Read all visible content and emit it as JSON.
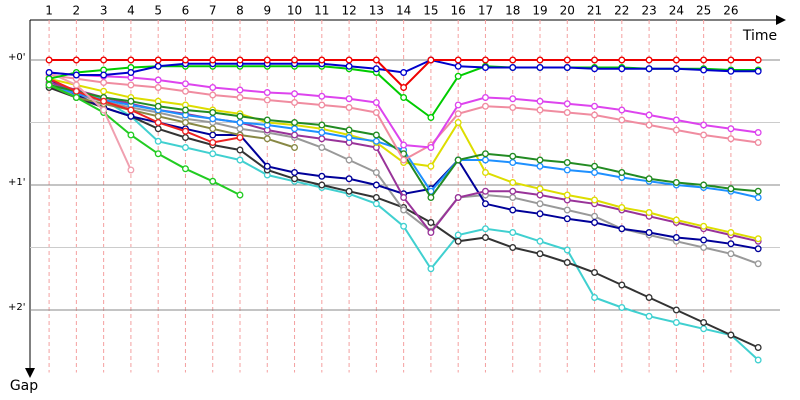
{
  "chart_data": {
    "type": "line",
    "x_label": "Time",
    "y_label": "Gap",
    "x": [
      1,
      2,
      3,
      4,
      5,
      6,
      7,
      8,
      9,
      10,
      11,
      12,
      13,
      14,
      15,
      16,
      17,
      18,
      19,
      20,
      21,
      22,
      23,
      24,
      25,
      26,
      27
    ],
    "xlim": [
      0.3,
      27.8
    ],
    "xticks": [
      1,
      2,
      3,
      4,
      5,
      6,
      7,
      8,
      9,
      10,
      11,
      12,
      13,
      14,
      15,
      16,
      17,
      18,
      19,
      20,
      21,
      22,
      23,
      24,
      25,
      26
    ],
    "ylim": [
      -0.3,
      2.5
    ],
    "yticks": [
      {
        "value": 0,
        "label": "+0'"
      },
      {
        "value": 1,
        "label": "+1'"
      },
      {
        "value": 2,
        "label": "+2'"
      }
    ],
    "minor_yticks": [
      0.5,
      1.5
    ],
    "y_inverted": true,
    "grid": true,
    "series": [
      {
        "color": "#40d0d0",
        "values": [
          0.2,
          0.25,
          0.32,
          0.45,
          0.65,
          0.7,
          0.75,
          0.8,
          0.92,
          0.97,
          1.02,
          1.07,
          1.15,
          1.33,
          1.67,
          1.4,
          1.35,
          1.38,
          1.45,
          1.52,
          1.9,
          1.98,
          2.05,
          2.1,
          2.15,
          2.2,
          2.4
        ]
      },
      {
        "color": "#333333",
        "values": [
          0.22,
          0.3,
          0.38,
          0.45,
          0.55,
          0.62,
          0.68,
          0.72,
          0.88,
          0.95,
          1.0,
          1.05,
          1.1,
          1.18,
          1.3,
          1.45,
          1.42,
          1.5,
          1.55,
          1.62,
          1.7,
          1.8,
          1.9,
          2.0,
          2.1,
          2.2,
          2.3
        ]
      },
      {
        "color": "#999999",
        "values": [
          0.2,
          0.28,
          0.33,
          0.38,
          0.42,
          0.47,
          0.5,
          0.55,
          0.58,
          0.62,
          0.7,
          0.8,
          0.9,
          1.2,
          1.37,
          1.1,
          1.08,
          1.1,
          1.15,
          1.2,
          1.25,
          1.35,
          1.4,
          1.45,
          1.5,
          1.55,
          1.63
        ]
      },
      {
        "color": "#000099",
        "values": [
          0.15,
          0.28,
          0.38,
          0.45,
          0.5,
          0.55,
          0.6,
          0.6,
          0.85,
          0.9,
          0.93,
          0.95,
          1.0,
          1.07,
          1.03,
          0.8,
          1.15,
          1.2,
          1.23,
          1.27,
          1.3,
          1.35,
          1.38,
          1.42,
          1.44,
          1.47,
          1.51
        ]
      },
      {
        "color": "#993399",
        "values": [
          0.18,
          0.24,
          0.3,
          0.35,
          0.4,
          0.43,
          0.47,
          0.5,
          0.56,
          0.6,
          0.63,
          0.66,
          0.7,
          1.1,
          1.38,
          1.1,
          1.05,
          1.05,
          1.08,
          1.12,
          1.15,
          1.2,
          1.25,
          1.3,
          1.35,
          1.4,
          1.45
        ]
      },
      {
        "color": "#dddd00",
        "values": [
          0.15,
          0.2,
          0.25,
          0.3,
          0.33,
          0.36,
          0.4,
          0.43,
          0.5,
          0.52,
          0.55,
          0.6,
          0.66,
          0.82,
          0.85,
          0.5,
          0.9,
          0.98,
          1.03,
          1.08,
          1.12,
          1.18,
          1.22,
          1.28,
          1.33,
          1.38,
          1.43
        ]
      },
      {
        "color": "#1e90ff",
        "values": [
          0.2,
          0.27,
          0.32,
          0.36,
          0.4,
          0.44,
          0.47,
          0.5,
          0.52,
          0.55,
          0.58,
          0.62,
          0.65,
          0.72,
          1.05,
          0.8,
          0.8,
          0.82,
          0.85,
          0.88,
          0.9,
          0.94,
          0.97,
          1.0,
          1.02,
          1.05,
          1.1
        ]
      },
      {
        "color": "#228b22",
        "values": [
          0.2,
          0.25,
          0.3,
          0.33,
          0.37,
          0.4,
          0.42,
          0.45,
          0.48,
          0.5,
          0.52,
          0.56,
          0.6,
          0.75,
          1.1,
          0.8,
          0.75,
          0.77,
          0.8,
          0.82,
          0.85,
          0.9,
          0.95,
          0.98,
          1.0,
          1.03,
          1.05
        ]
      },
      {
        "color": "#f08ca0",
        "values": [
          0.12,
          0.15,
          0.18,
          0.2,
          0.22,
          0.25,
          0.28,
          0.3,
          0.32,
          0.34,
          0.36,
          0.38,
          0.42,
          0.8,
          0.68,
          0.43,
          0.37,
          0.38,
          0.4,
          0.42,
          0.44,
          0.48,
          0.52,
          0.56,
          0.6,
          0.63,
          0.66
        ]
      },
      {
        "color": "#dd44ee",
        "values": [
          0.1,
          0.12,
          0.13,
          0.14,
          0.16,
          0.19,
          0.22,
          0.24,
          0.26,
          0.27,
          0.29,
          0.31,
          0.34,
          0.68,
          0.7,
          0.36,
          0.3,
          0.31,
          0.33,
          0.35,
          0.37,
          0.4,
          0.44,
          0.48,
          0.52,
          0.55,
          0.58
        ]
      },
      {
        "color": "#888844",
        "values": [
          0.2,
          0.3,
          0.35,
          0.4,
          0.45,
          0.5,
          0.55,
          0.6,
          0.63,
          0.7,
          null,
          null,
          null,
          null,
          null,
          null,
          null,
          null,
          null,
          null,
          null,
          null,
          null,
          null,
          null,
          null,
          null
        ]
      },
      {
        "color": "#ee2222",
        "values": [
          0.15,
          0.25,
          0.33,
          0.4,
          0.5,
          0.57,
          0.66,
          0.62,
          null,
          null,
          null,
          null,
          null,
          null,
          null,
          null,
          null,
          null,
          null,
          null,
          null,
          null,
          null,
          null,
          null,
          null,
          null
        ]
      },
      {
        "color": "#22cc22",
        "values": [
          0.2,
          0.3,
          0.42,
          0.6,
          0.75,
          0.87,
          0.97,
          1.08,
          null,
          null,
          null,
          null,
          null,
          null,
          null,
          null,
          null,
          null,
          null,
          null,
          null,
          null,
          null,
          null,
          null,
          null,
          null
        ]
      },
      {
        "color": "#f0a0b0",
        "values": [
          0.1,
          0.2,
          0.4,
          0.88,
          null,
          null,
          null,
          null,
          null,
          null,
          null,
          null,
          null,
          null,
          null,
          null,
          null,
          null,
          null,
          null,
          null,
          null,
          null,
          null,
          null,
          null,
          null
        ]
      },
      {
        "color": "#00cc00",
        "values": [
          0.15,
          0.1,
          0.08,
          0.06,
          0.05,
          0.05,
          0.05,
          0.05,
          0.05,
          0.05,
          0.05,
          0.07,
          0.1,
          0.3,
          0.46,
          0.13,
          0.05,
          0.06,
          0.06,
          0.06,
          0.06,
          0.06,
          0.07,
          0.07,
          0.07,
          0.08,
          0.08
        ]
      },
      {
        "color": "#0000cc",
        "values": [
          0.1,
          0.12,
          0.12,
          0.1,
          0.05,
          0.03,
          0.03,
          0.03,
          0.03,
          0.03,
          0.03,
          0.05,
          0.07,
          0.1,
          0,
          0.05,
          0.06,
          0.06,
          0.06,
          0.06,
          0.07,
          0.07,
          0.07,
          0.07,
          0.08,
          0.09,
          0.09
        ]
      },
      {
        "color": "#ee0000",
        "values": [
          0,
          0,
          0,
          0,
          0,
          0,
          0,
          0,
          0,
          0,
          0,
          0,
          0,
          0.22,
          0,
          0,
          0,
          0,
          0,
          0,
          0,
          0,
          0,
          0,
          0,
          0,
          0
        ]
      }
    ]
  }
}
